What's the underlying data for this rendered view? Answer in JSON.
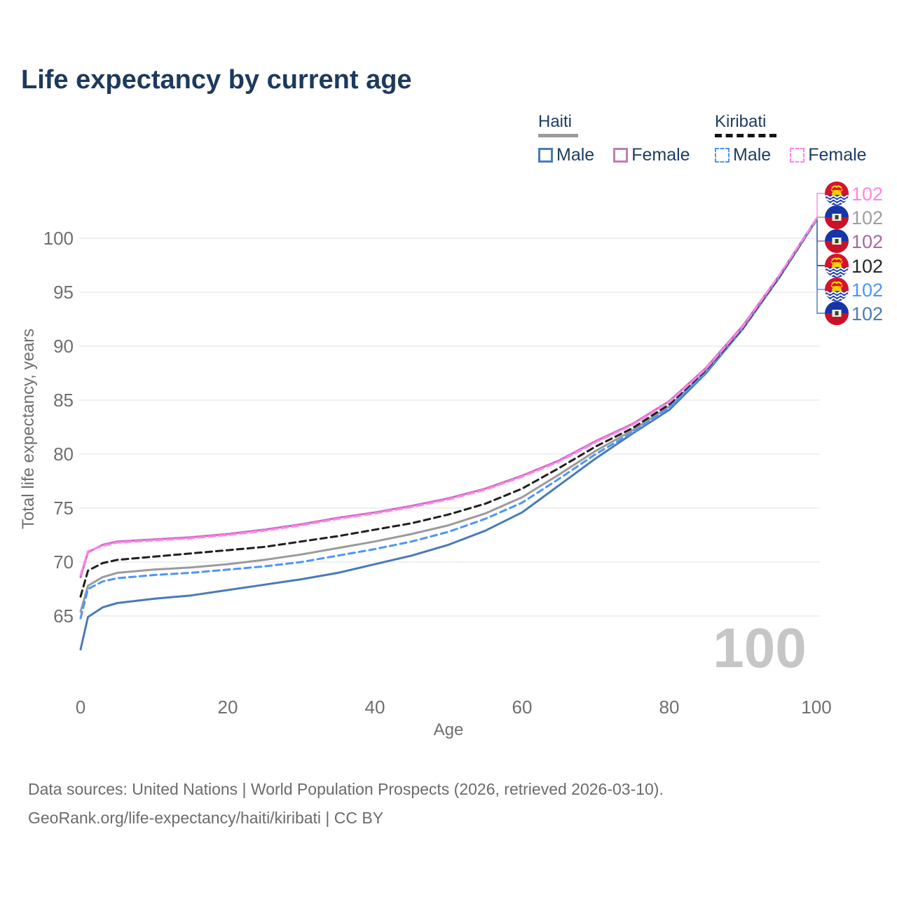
{
  "title": "Life expectancy by current age",
  "legend": {
    "groups": [
      {
        "country": "Haiti",
        "line_style": "solid",
        "underline_color": "#9b9b9b",
        "items": [
          {
            "label": "Male",
            "color": "#4a7ab8"
          },
          {
            "label": "Female",
            "color": "#bd7fb2"
          }
        ]
      },
      {
        "country": "Kiribati",
        "line_style": "dashed",
        "underline_color": "#141414",
        "items": [
          {
            "label": "Male",
            "color": "#4d94ff"
          },
          {
            "label": "Female",
            "color": "#ff85e6"
          }
        ]
      }
    ]
  },
  "footer": {
    "line1": "Data sources: United Nations | World Population Prospects (2026, retrieved 2026-03-10).",
    "line2": "GeoRank.org/life-expectancy/haiti/kiribati | CC BY"
  },
  "chart_data": {
    "type": "line",
    "title": "Life expectancy by current age",
    "xlabel": "Age",
    "ylabel": "Total life expectancy, years",
    "xlim": [
      0,
      100
    ],
    "ylim": [
      61,
      103
    ],
    "x_ticks": [
      0,
      20,
      40,
      60,
      80,
      100
    ],
    "y_ticks": [
      65,
      70,
      75,
      80,
      85,
      90,
      95,
      100
    ],
    "grid": true,
    "hover_age_watermark": "100",
    "x": [
      0,
      1,
      3,
      5,
      10,
      15,
      20,
      25,
      30,
      35,
      40,
      45,
      50,
      55,
      60,
      65,
      70,
      75,
      80,
      85,
      90,
      95,
      100
    ],
    "series": [
      {
        "name": "Haiti Male",
        "country": "Haiti",
        "sex": "Male",
        "color": "#4a7ab8",
        "dashed": false,
        "values": [
          61.9,
          64.9,
          65.8,
          66.2,
          66.6,
          66.9,
          67.4,
          67.9,
          68.4,
          69.0,
          69.8,
          70.6,
          71.6,
          72.9,
          74.6,
          77.1,
          79.6,
          81.9,
          84.1,
          87.5,
          91.6,
          96.4,
          101.7
        ]
      },
      {
        "name": "Haiti Both sexes",
        "country": "Haiti",
        "sex": "Both",
        "color": "#9b9b9b",
        "dashed": false,
        "values": [
          65.4,
          67.8,
          68.6,
          69.0,
          69.3,
          69.5,
          69.8,
          70.2,
          70.7,
          71.3,
          71.9,
          72.6,
          73.4,
          74.5,
          76.0,
          78.1,
          80.3,
          82.2,
          84.4,
          87.7,
          91.7,
          96.5,
          101.7
        ]
      },
      {
        "name": "Haiti Female",
        "country": "Haiti",
        "sex": "Female",
        "color": "#cf6bc4",
        "dashed": false,
        "values": [
          68.6,
          70.9,
          71.6,
          71.9,
          72.1,
          72.3,
          72.6,
          73.0,
          73.5,
          74.1,
          74.6,
          75.2,
          75.9,
          76.8,
          78.0,
          79.4,
          81.2,
          82.8,
          84.9,
          88.0,
          91.9,
          96.6,
          101.8
        ]
      },
      {
        "name": "Kiribati Male",
        "country": "Kiribati",
        "sex": "Male",
        "color": "#4d94ff",
        "dashed": true,
        "values": [
          64.8,
          67.5,
          68.2,
          68.5,
          68.8,
          69.0,
          69.3,
          69.6,
          70.0,
          70.6,
          71.2,
          71.9,
          72.8,
          74.0,
          75.5,
          77.7,
          80.0,
          82.0,
          84.3,
          87.6,
          91.6,
          96.4,
          101.7
        ]
      },
      {
        "name": "Kiribati Both sexes",
        "country": "Kiribati",
        "sex": "Both",
        "color": "#1f1f1f",
        "dashed": true,
        "values": [
          66.8,
          69.2,
          69.9,
          70.2,
          70.5,
          70.8,
          71.1,
          71.4,
          71.9,
          72.4,
          73.0,
          73.6,
          74.4,
          75.4,
          76.8,
          78.7,
          80.7,
          82.4,
          84.6,
          87.8,
          91.7,
          96.5,
          101.7
        ]
      },
      {
        "name": "Kiribati Female",
        "country": "Kiribati",
        "sex": "Female",
        "color": "#ff85e6",
        "dashed": true,
        "values": [
          68.8,
          71.0,
          71.5,
          71.8,
          72.0,
          72.2,
          72.5,
          72.9,
          73.4,
          74.0,
          74.5,
          75.1,
          75.8,
          76.7,
          77.9,
          79.3,
          81.1,
          82.7,
          84.8,
          87.9,
          91.8,
          96.6,
          101.75
        ]
      }
    ],
    "right_labels": [
      {
        "flag": "kiribati",
        "series": "Kiribati Female",
        "value": "102",
        "color": "#ff85e6"
      },
      {
        "flag": "haiti",
        "series": "Haiti Both sexes",
        "value": "102",
        "color": "#9e9e9e"
      },
      {
        "flag": "haiti",
        "series": "Haiti Female",
        "value": "102",
        "color": "#a8689f"
      },
      {
        "flag": "kiribati",
        "series": "Kiribati Both sexes",
        "value": "102",
        "color": "#262626"
      },
      {
        "flag": "kiribati",
        "series": "Kiribati Male",
        "value": "102",
        "color": "#4d94ff"
      },
      {
        "flag": "haiti",
        "series": "Haiti Male",
        "value": "102",
        "color": "#4a7ab8"
      }
    ]
  }
}
